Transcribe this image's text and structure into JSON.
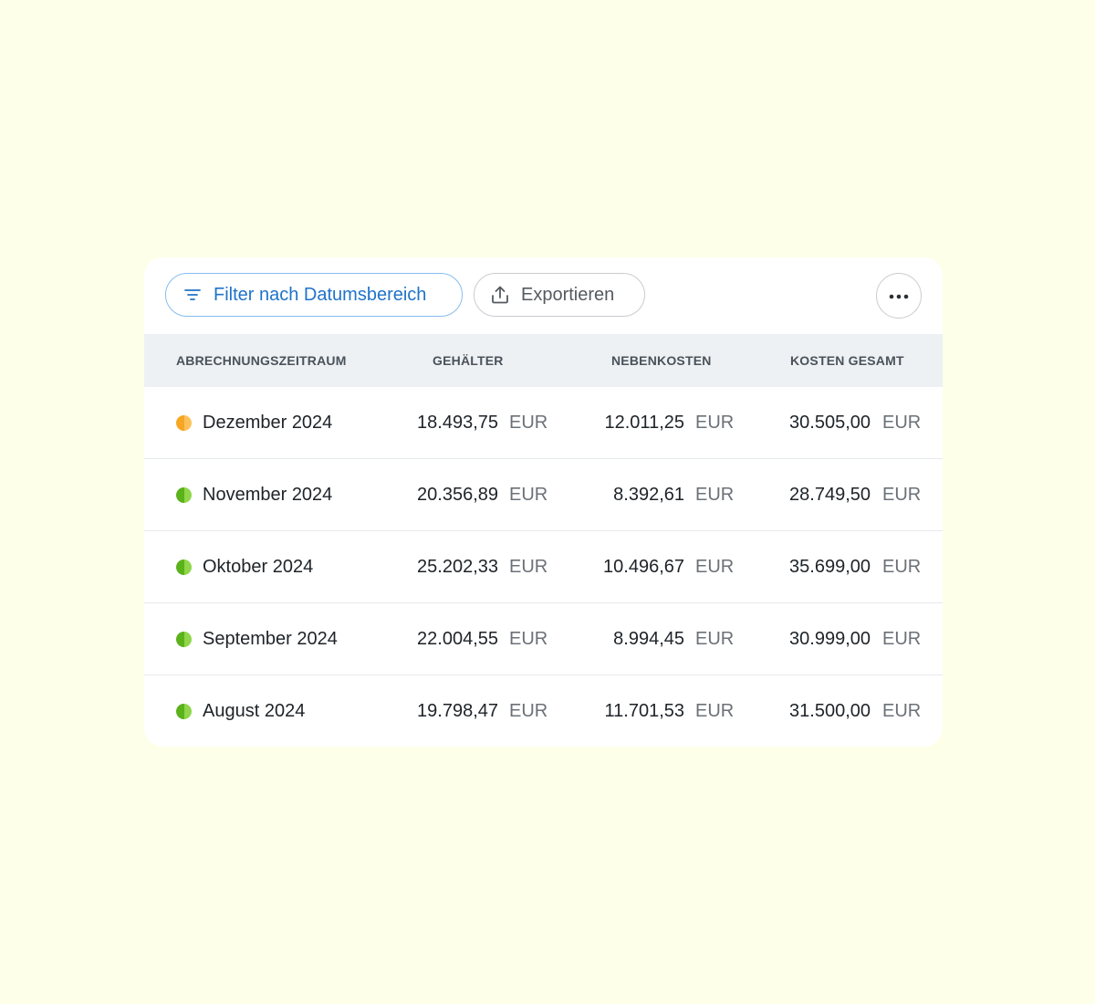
{
  "toolbar": {
    "filter_label": "Filter nach Datumsbereich",
    "filter_icon": "filter-icon",
    "export_label": "Exportieren",
    "export_icon": "upload-icon",
    "more_icon": "more-horizontal-icon"
  },
  "colors": {
    "page_background": "#fdffe8",
    "filter_accent": "#1f73c9",
    "status_pending": "#f6a623",
    "status_done": "#6cc11f"
  },
  "table": {
    "headers": [
      "ABRECHNUNGSZEITRAUM",
      "GEHÄLTER",
      "NEBENKOSTEN",
      "KOSTEN GESAMT"
    ],
    "rows": [
      {
        "period": "Dezember 2024",
        "status": "pending",
        "salaries": "18.493,75",
        "salaries_currency": "EUR",
        "extra_costs": "12.011,25",
        "extra_costs_currency": "EUR",
        "total": "30.505,00",
        "total_currency": "EUR"
      },
      {
        "period": "November 2024",
        "status": "done",
        "salaries": "20.356,89",
        "salaries_currency": "EUR",
        "extra_costs": "8.392,61",
        "extra_costs_currency": "EUR",
        "total": "28.749,50",
        "total_currency": "EUR"
      },
      {
        "period": "Oktober 2024",
        "status": "done",
        "salaries": "25.202,33",
        "salaries_currency": "EUR",
        "extra_costs": "10.496,67",
        "extra_costs_currency": "EUR",
        "total": "35.699,00",
        "total_currency": "EUR"
      },
      {
        "period": "September 2024",
        "status": "done",
        "salaries": "22.004,55",
        "salaries_currency": "EUR",
        "extra_costs": "8.994,45",
        "extra_costs_currency": "EUR",
        "total": "30.999,00",
        "total_currency": "EUR"
      },
      {
        "period": "August 2024",
        "status": "done",
        "salaries": "19.798,47",
        "salaries_currency": "EUR",
        "extra_costs": "11.701,53",
        "extra_costs_currency": "EUR",
        "total": "31.500,00",
        "total_currency": "EUR"
      }
    ]
  }
}
